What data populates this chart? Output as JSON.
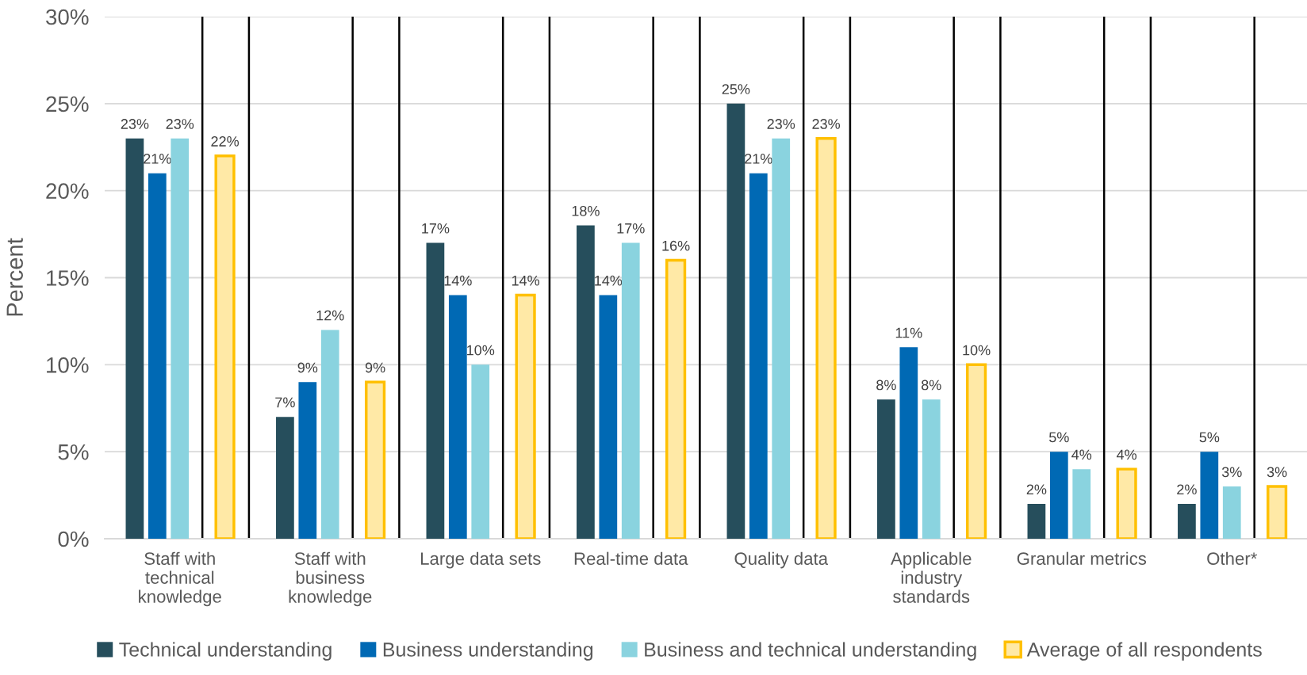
{
  "chart_data": {
    "type": "bar",
    "ylabel": "Percent",
    "categories": [
      "Staff with\ntechnical\nknowledge",
      "Staff with\nbusiness\nknowledge",
      "Large data sets",
      "Real-time data",
      "Quality data",
      "Applicable\nindustry\nstandards",
      "Granular metrics",
      "Other*"
    ],
    "series": [
      {
        "name": "Technical understanding",
        "color": "#264e5c",
        "values": [
          23,
          7,
          17,
          18,
          25,
          8,
          2,
          2
        ],
        "value_labels": [
          "23%",
          "7%",
          "17%",
          "18%",
          "25%",
          "8%",
          "2%",
          "2%"
        ]
      },
      {
        "name": "Business understanding",
        "color": "#0069b4",
        "values": [
          21,
          9,
          14,
          14,
          21,
          11,
          5,
          5
        ],
        "value_labels": [
          "21%",
          "9%",
          "14%",
          "14%",
          "21%",
          "11%",
          "5%",
          "5%"
        ]
      },
      {
        "name": "Business and technical understanding",
        "color": "#8ad3df",
        "values": [
          23,
          12,
          10,
          17,
          23,
          8,
          4,
          3
        ],
        "value_labels": [
          "23%",
          "12%",
          "10%",
          "17%",
          "23%",
          "8%",
          "4%",
          "3%"
        ]
      },
      {
        "name": "Average of all respondents",
        "color": "#ffc000",
        "values": [
          22,
          9,
          14,
          16,
          23,
          10,
          4,
          3
        ],
        "value_labels": [
          "22%",
          "9%",
          "14%",
          "16%",
          "23%",
          "10%",
          "4%",
          "3%"
        ]
      }
    ],
    "ylim": [
      0,
      30
    ],
    "yticks": [
      {
        "value": 0,
        "label": "0%"
      },
      {
        "value": 5,
        "label": "5%"
      },
      {
        "value": 10,
        "label": "10%"
      },
      {
        "value": 15,
        "label": "15%"
      },
      {
        "value": 20,
        "label": "20%"
      },
      {
        "value": 25,
        "label": "25%"
      },
      {
        "value": 30,
        "label": "30%"
      }
    ],
    "grid": "y",
    "legend": "bottom"
  }
}
